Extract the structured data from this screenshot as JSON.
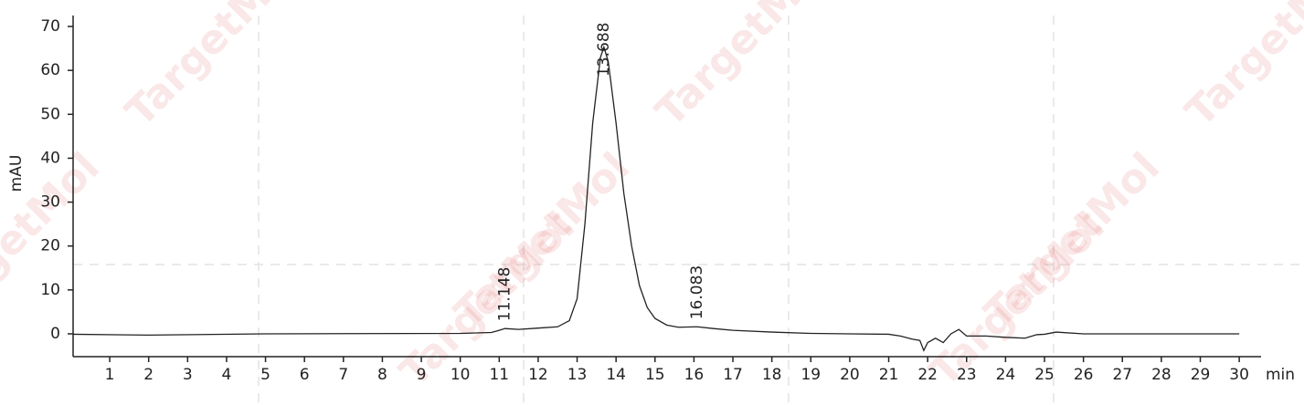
{
  "chart_data": {
    "type": "line",
    "x_label": "min",
    "y_label": "mAU",
    "watermark": "TargetMol",
    "color": "#222222",
    "x": [
      0.05,
      2,
      5,
      10,
      10.8,
      11.0,
      11.148,
      11.5,
      12,
      12.5,
      12.8,
      13.0,
      13.2,
      13.4,
      13.6,
      13.688,
      13.8,
      14.0,
      14.2,
      14.4,
      14.6,
      14.8,
      15.0,
      15.3,
      15.6,
      16.083,
      16.5,
      17,
      18,
      19,
      20,
      21,
      21.3,
      21.6,
      21.8,
      21.9,
      22.0,
      22.2,
      22.4,
      22.6,
      22.8,
      23,
      23.5,
      24,
      24.5,
      24.8,
      25,
      25.3,
      26,
      30
    ],
    "values": [
      -0.1,
      -0.3,
      0,
      0.1,
      0.3,
      0.8,
      1.2,
      1.0,
      1.3,
      1.6,
      3,
      8,
      25,
      48,
      63,
      65.3,
      62,
      48,
      32,
      20,
      11,
      6,
      3.5,
      2,
      1.5,
      1.6,
      1.2,
      0.8,
      0.4,
      0.1,
      0,
      -0.1,
      -0.5,
      -1.2,
      -1.5,
      -3.8,
      -2,
      -1,
      -2,
      0,
      1,
      -0.5,
      -0.5,
      -0.8,
      -1,
      -0.2,
      -0.1,
      0.4,
      0,
      0
    ],
    "annotations": [
      11.148,
      13.688,
      16.083
    ],
    "xlim": [
      0.06,
      30.56
    ],
    "ylim": [
      -5.2,
      72.5
    ],
    "xticks": [
      1,
      2,
      3,
      4,
      5,
      6,
      7,
      8,
      9,
      10,
      11,
      12,
      13,
      14,
      15,
      16,
      17,
      18,
      19,
      20,
      21,
      22,
      23,
      24,
      25,
      26,
      27,
      28,
      29,
      30
    ],
    "yticks": [
      0,
      10,
      20,
      30,
      40,
      50,
      60,
      70
    ]
  }
}
